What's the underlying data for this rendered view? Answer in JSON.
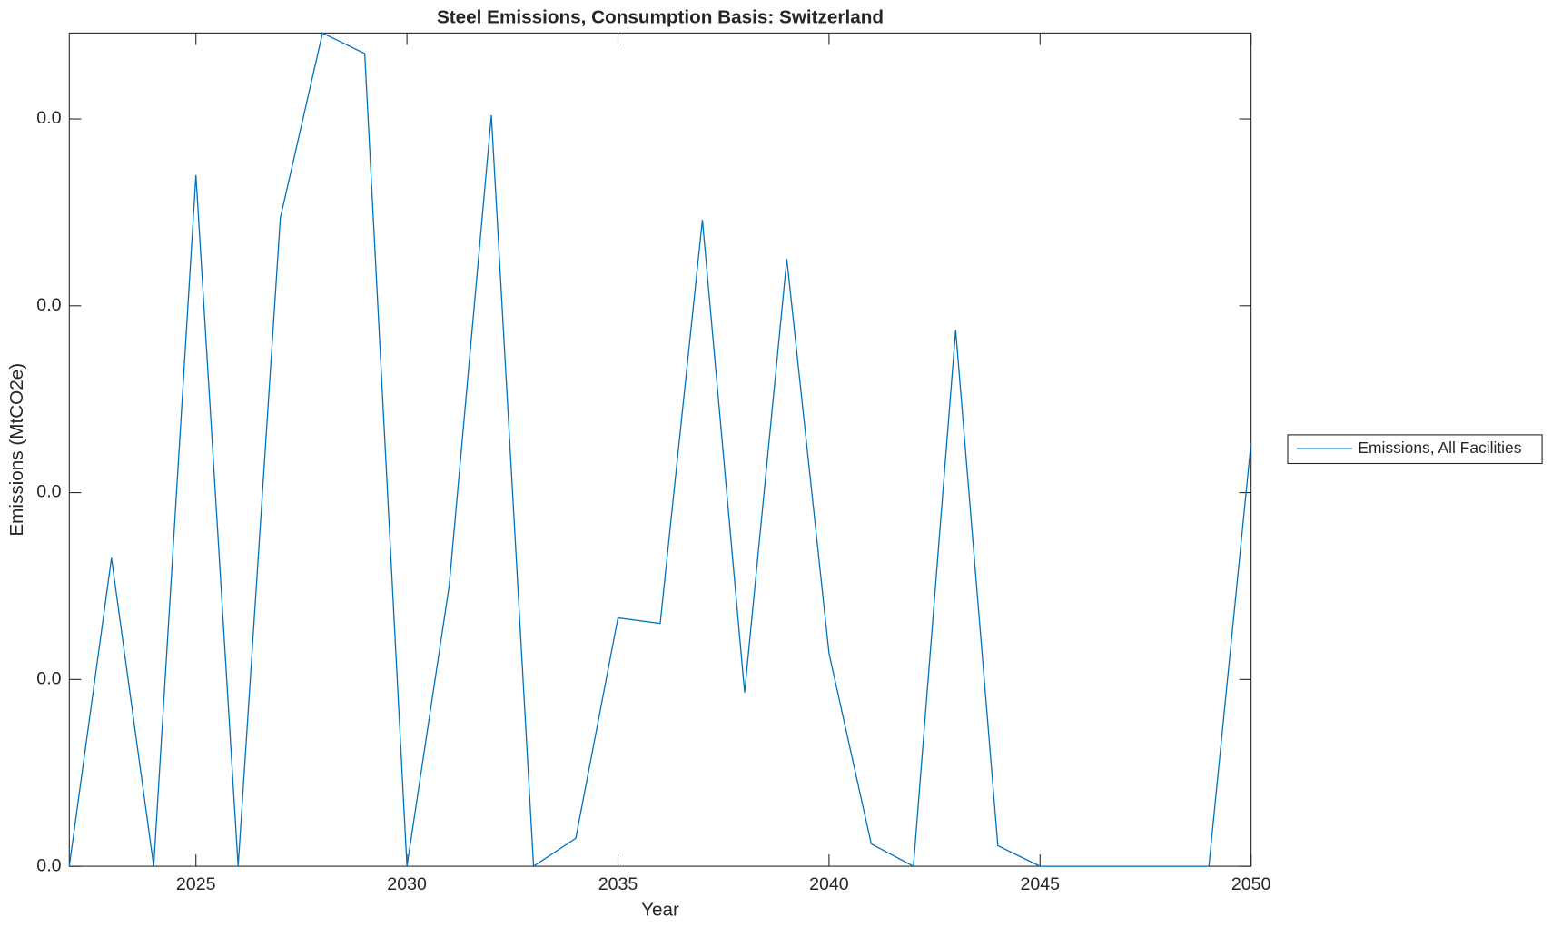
{
  "chart_data": {
    "type": "line",
    "title": "Steel Emissions, Consumption Basis: Switzerland",
    "x_label": "Year",
    "y_label": "Emissions (MtCO2e)",
    "x": [
      2022,
      2023,
      2024,
      2025,
      2026,
      2027,
      2028,
      2029,
      2030,
      2031,
      2032,
      2033,
      2034,
      2035,
      2036,
      2037,
      2038,
      2039,
      2040,
      2041,
      2042,
      2043,
      2044,
      2045,
      2046,
      2047,
      2048,
      2049,
      2050
    ],
    "series": [
      {
        "name": "Emissions, All Facilities",
        "color": "#0072bd",
        "values": [
          0,
          0.0165,
          0,
          0.037,
          0,
          0.0347,
          0.0446,
          0.0435,
          0,
          0.015,
          0.0402,
          0,
          0.0015,
          0.0133,
          0.013,
          0.0346,
          0.0093,
          0.0325,
          0.0114,
          0.0012,
          0,
          0.0287,
          0.0011,
          0,
          0,
          0,
          0,
          0,
          0.0227
        ]
      }
    ],
    "xlim": [
      2022,
      2050
    ],
    "xticks": [
      2025,
      2030,
      2035,
      2040,
      2045,
      2050
    ],
    "ylim": [
      0,
      0.0446
    ],
    "yticks": [
      {
        "value": 0,
        "label": "0.0"
      },
      {
        "value": 0.01,
        "label": "0.0"
      },
      {
        "value": 0.02,
        "label": "0.0"
      },
      {
        "value": 0.03,
        "label": "0.0"
      },
      {
        "value": 0.04,
        "label": "0.0"
      }
    ],
    "legend": "outside-right"
  }
}
